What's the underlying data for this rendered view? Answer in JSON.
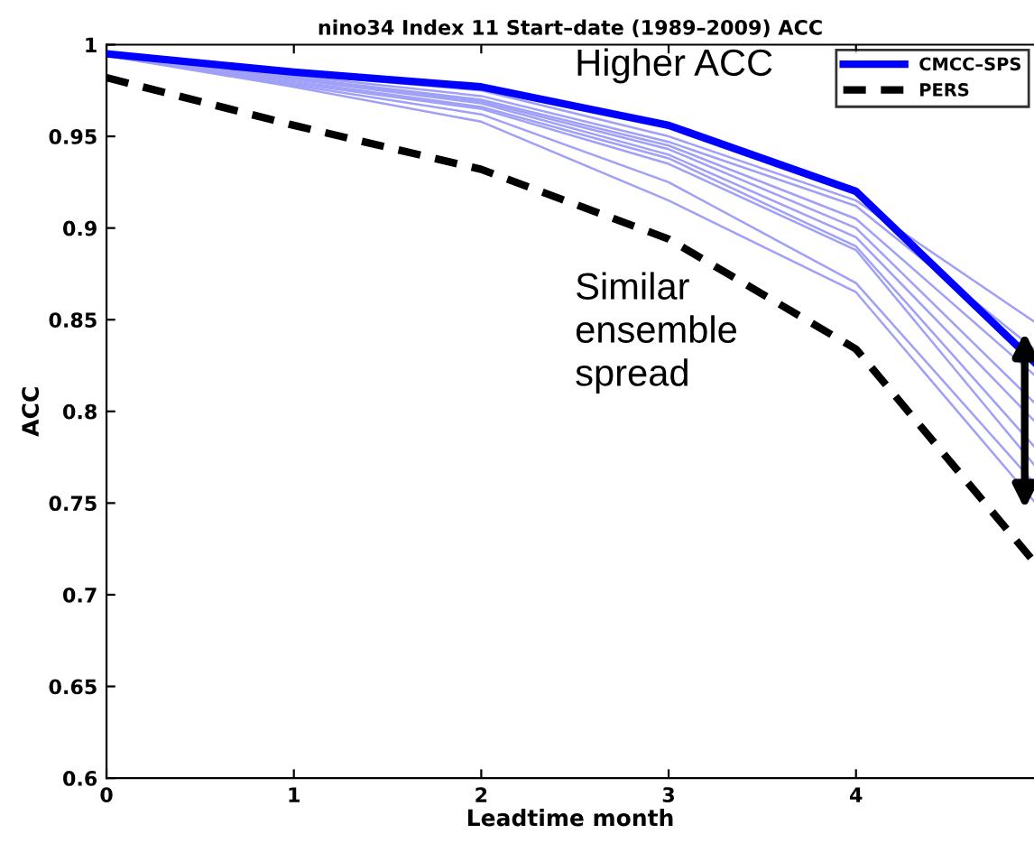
{
  "chart_data": {
    "type": "line",
    "title": "nino34 Index 11 Start–date (1989–2009) ACC",
    "xlabel": "Leadtime month",
    "ylabel": "ACC",
    "x": [
      0,
      1,
      2,
      3,
      4,
      4.95
    ],
    "series": [
      {
        "color": "#a0a0f8",
        "values": [
          0.994,
          0.984,
          0.975,
          0.95,
          0.915,
          0.849
        ]
      },
      {
        "color": "#a0a0f8",
        "values": [
          0.994,
          0.983,
          0.972,
          0.947,
          0.912,
          0.834
        ]
      },
      {
        "color": "#a0a0f8",
        "values": [
          0.994,
          0.982,
          0.97,
          0.945,
          0.905,
          0.82
        ]
      },
      {
        "color": "#a0a0f8",
        "values": [
          0.994,
          0.982,
          0.969,
          0.943,
          0.9,
          0.805
        ]
      },
      {
        "color": "#a0a0f8",
        "values": [
          0.994,
          0.981,
          0.968,
          0.94,
          0.895,
          0.795
        ]
      },
      {
        "color": "#a0a0f8",
        "values": [
          0.994,
          0.98,
          0.966,
          0.938,
          0.89,
          0.781
        ]
      },
      {
        "color": "#a0a0f8",
        "values": [
          0.994,
          0.979,
          0.965,
          0.935,
          0.888,
          0.771
        ]
      },
      {
        "color": "#a0a0f8",
        "values": [
          0.994,
          0.978,
          0.962,
          0.925,
          0.87,
          0.761
        ]
      },
      {
        "color": "#a0a0f8",
        "values": [
          0.994,
          0.977,
          0.958,
          0.915,
          0.865,
          0.751
        ]
      },
      {
        "name": "CMCC–SPS",
        "color": "#0000ff",
        "line_style": "solid",
        "values": [
          0.995,
          0.985,
          0.977,
          0.956,
          0.92,
          0.827
        ]
      },
      {
        "name": "PERS",
        "color": "#000000",
        "line_style": "dashed",
        "values": [
          0.982,
          0.956,
          0.932,
          0.894,
          0.834,
          0.718
        ]
      }
    ],
    "xlim": [
      0,
      4.95
    ],
    "xticks": [
      0,
      1,
      2,
      3,
      4
    ],
    "ylim": [
      0.6,
      1
    ],
    "yticks": [
      0.6,
      0.65,
      0.7,
      0.75,
      0.8,
      0.85,
      0.9,
      0.95,
      1
    ],
    "annotations": [
      "Higher ACC",
      "Similar\nensemble\nspread"
    ],
    "grid": false,
    "legend": "top right",
    "marker": "none"
  }
}
